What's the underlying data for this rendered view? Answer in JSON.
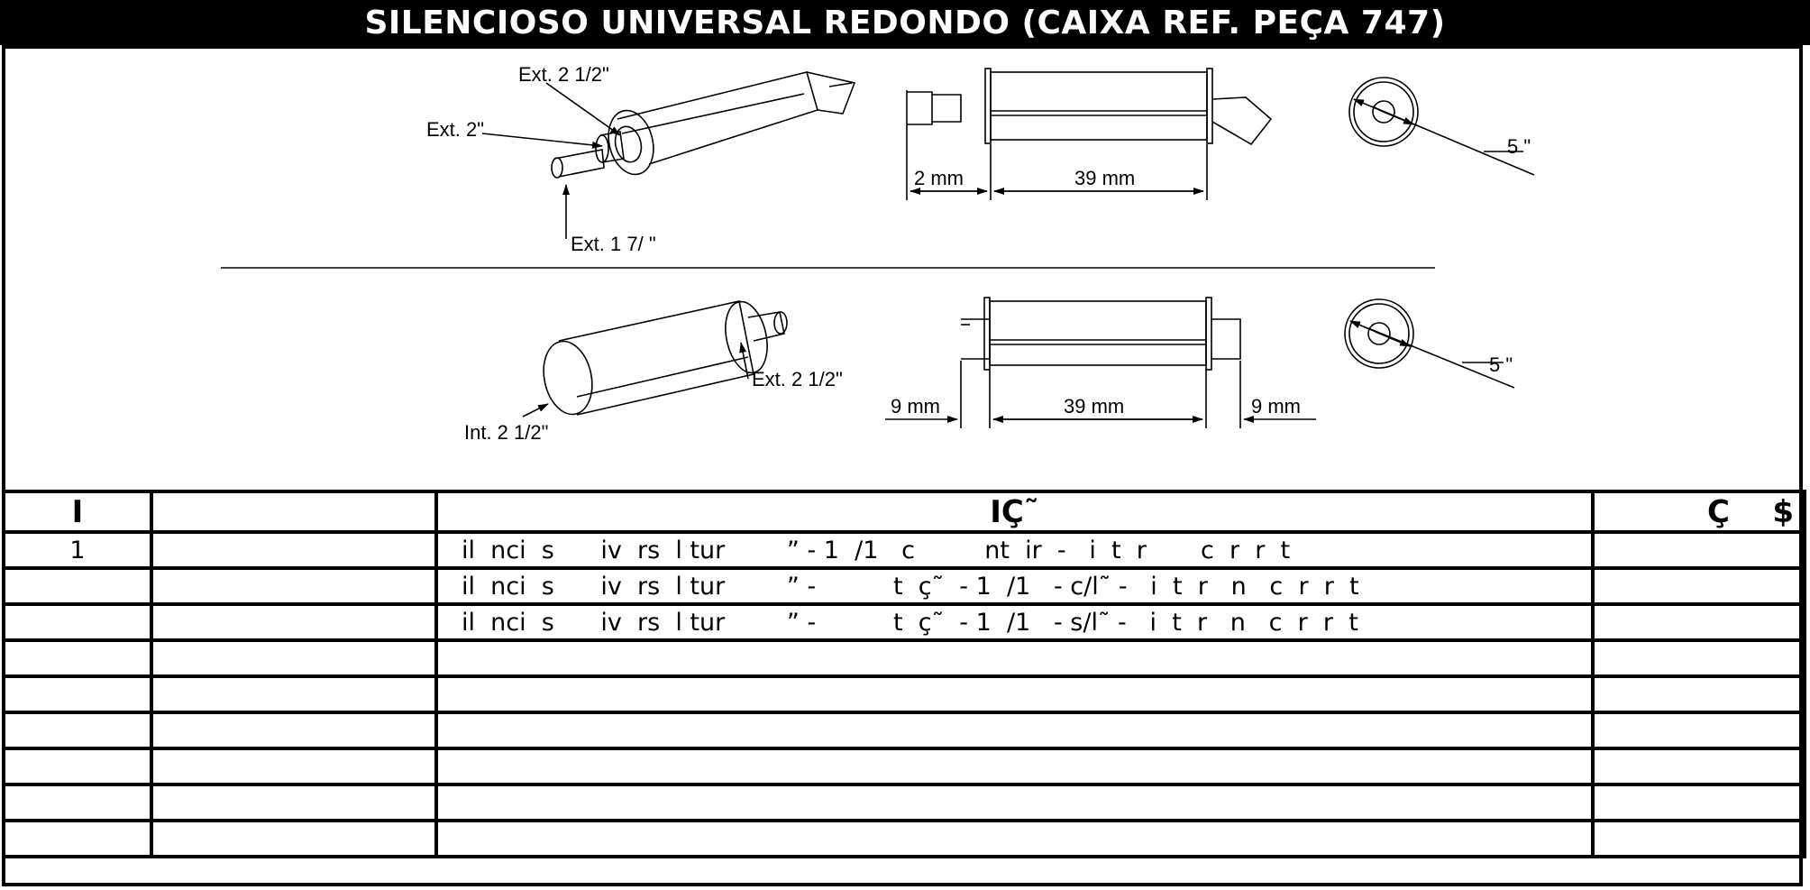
{
  "title": "SILENCIOSO UNIVERSAL  REDONDO (CAIXA REF. PEÇA 747)",
  "drawing_top": {
    "label_ext_2_1_2": "Ext. 2 1/2\"",
    "label_ext_2": "Ext. 2\"",
    "label_ext_1_7": "Ext. 1 7/  \"",
    "dim_left": "2    mm",
    "dim_body": "39   mm",
    "dim_diameter": "5 \""
  },
  "drawing_bottom": {
    "label_ext_2_1_2": "Ext. 2 1/2\"",
    "label_int_2_1_2": "Int. 2 1/2\"",
    "dim_left": "9   mm",
    "dim_body": "39    mm",
    "dim_right": "9    mm",
    "dim_diameter": "5 \""
  },
  "table": {
    "headers": {
      "item": "I",
      "ref": "",
      "desc": "IÇ˜",
      "price": "Ç    $"
    },
    "rows": [
      {
        "item": "1",
        "ref": "",
        "desc": "il  nci  s      iv  rs  l tur        ” - 1  /1   c         nt  ir  -   i  t  r       c  r  r  t",
        "price": ""
      },
      {
        "item": "",
        "ref": "",
        "desc": "il  nci  s      iv  rs  l tur        ” -          t  ç˜  - 1  /1   - c/l˜ -   i  t  r   n   c  r  r  t",
        "price": ""
      },
      {
        "item": "",
        "ref": "",
        "desc": "il  nci  s      iv  rs  l tur        ” -          t  ç˜  - 1  /1   - s/l˜ -   i  t  r   n   c  r  r  t",
        "price": ""
      },
      {
        "item": "",
        "ref": "",
        "desc": "",
        "price": ""
      },
      {
        "item": "",
        "ref": "",
        "desc": "",
        "price": ""
      },
      {
        "item": "",
        "ref": "",
        "desc": "",
        "price": ""
      },
      {
        "item": "",
        "ref": "",
        "desc": "",
        "price": ""
      },
      {
        "item": "",
        "ref": "",
        "desc": "",
        "price": ""
      },
      {
        "item": "",
        "ref": "",
        "desc": "",
        "price": ""
      }
    ]
  }
}
